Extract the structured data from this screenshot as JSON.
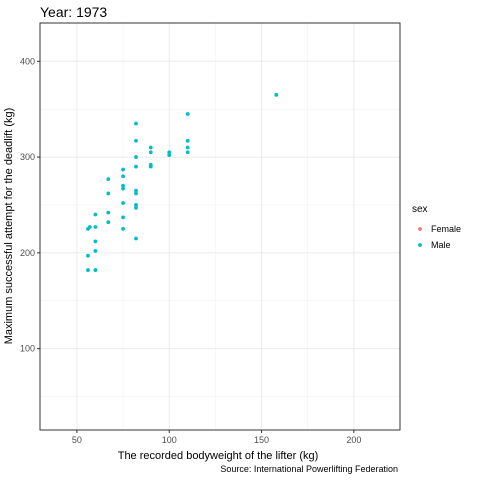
{
  "chart_data": {
    "type": "scatter",
    "title": "Year: 1973",
    "xlabel": "The recorded bodyweight of the lifter (kg)",
    "ylabel": "Maximum successful attempt for the deadlift (kg)",
    "caption": "Source: International Powerlifting Federation",
    "xlim": [
      30,
      225
    ],
    "ylim": [
      15,
      440
    ],
    "xticks": [
      50,
      100,
      150,
      200
    ],
    "yticks": [
      100,
      200,
      300,
      400
    ],
    "grid": true,
    "legend": {
      "title": "sex",
      "position": "right",
      "entries": [
        "Female",
        "Male"
      ]
    },
    "colors": {
      "Female": "#F8766D",
      "Male": "#00BFC4"
    },
    "series": [
      {
        "name": "Female",
        "points": []
      },
      {
        "name": "Male",
        "points": [
          [
            56,
            182
          ],
          [
            56,
            197
          ],
          [
            56,
            225
          ],
          [
            57,
            227
          ],
          [
            60,
            182
          ],
          [
            60,
            202
          ],
          [
            60,
            212
          ],
          [
            60,
            227
          ],
          [
            60,
            240
          ],
          [
            67,
            232
          ],
          [
            67,
            242
          ],
          [
            67,
            262
          ],
          [
            67,
            277
          ],
          [
            75,
            225
          ],
          [
            75,
            237
          ],
          [
            75,
            252
          ],
          [
            75,
            267
          ],
          [
            75,
            270
          ],
          [
            75,
            280
          ],
          [
            75,
            287
          ],
          [
            82,
            215
          ],
          [
            82,
            247
          ],
          [
            82,
            250
          ],
          [
            82,
            262
          ],
          [
            82,
            265
          ],
          [
            82,
            290
          ],
          [
            82,
            300
          ],
          [
            82,
            317
          ],
          [
            82,
            335
          ],
          [
            90,
            290
          ],
          [
            90,
            292
          ],
          [
            90,
            305
          ],
          [
            90,
            310
          ],
          [
            100,
            302
          ],
          [
            100,
            305
          ],
          [
            110,
            305
          ],
          [
            110,
            310
          ],
          [
            110,
            317
          ],
          [
            110,
            345
          ],
          [
            158,
            365
          ]
        ]
      }
    ]
  }
}
